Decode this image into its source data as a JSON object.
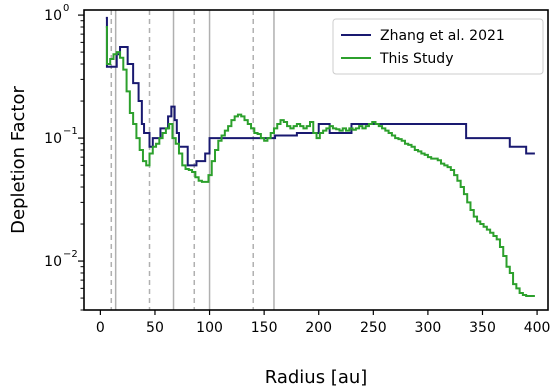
{
  "chart_data": {
    "type": "line",
    "xlabel": "Radius [au]",
    "ylabel": "Depletion Factor",
    "xlim": [
      -15,
      410
    ],
    "ylim": [
      0.004,
      1.1
    ],
    "y_scale": "log",
    "x_ticks": [
      0,
      50,
      100,
      150,
      200,
      250,
      300,
      350,
      400
    ],
    "x_tick_labels": [
      "0",
      "50",
      "100",
      "150",
      "200",
      "250",
      "300",
      "350",
      "400"
    ],
    "y_ticks": [
      0.01,
      0.1,
      1
    ],
    "y_tick_labels": [
      "10",
      "10",
      "10"
    ],
    "y_tick_exponents": [
      "−2",
      "−1",
      "0"
    ],
    "grid": false,
    "legend_position": "top-right",
    "reference_lines": [
      {
        "x": 10,
        "style": "dashed",
        "color": "#b0b0b0"
      },
      {
        "x": 14,
        "style": "solid",
        "color": "#b0b0b0"
      },
      {
        "x": 45,
        "style": "dashed",
        "color": "#b0b0b0"
      },
      {
        "x": 67,
        "style": "solid",
        "color": "#b0b0b0"
      },
      {
        "x": 86,
        "style": "dashed",
        "color": "#b0b0b0"
      },
      {
        "x": 100,
        "style": "solid",
        "color": "#b0b0b0"
      },
      {
        "x": 140,
        "style": "dashed",
        "color": "#b0b0b0"
      },
      {
        "x": 159,
        "style": "solid",
        "color": "#b0b0b0"
      }
    ],
    "series": [
      {
        "name": "Zhang et al. 2021",
        "color": "#191970",
        "step": "post",
        "x": [
          5,
          6,
          15,
          18,
          25,
          30,
          35,
          38,
          40,
          45,
          48,
          55,
          62,
          65,
          68,
          70,
          72,
          80,
          88,
          96,
          100,
          120,
          150,
          160,
          180,
          195,
          200,
          210,
          230,
          240,
          260,
          300,
          335,
          365,
          375,
          390,
          398
        ],
        "y": [
          0.95,
          0.38,
          0.48,
          0.55,
          0.4,
          0.28,
          0.2,
          0.13,
          0.11,
          0.085,
          0.1,
          0.12,
          0.15,
          0.18,
          0.14,
          0.11,
          0.085,
          0.06,
          0.065,
          0.075,
          0.1,
          0.1,
          0.1,
          0.105,
          0.11,
          0.11,
          0.13,
          0.11,
          0.13,
          0.13,
          0.13,
          0.13,
          0.1,
          0.1,
          0.085,
          0.075,
          0.075
        ]
      },
      {
        "name": "This Study",
        "color": "#2ca02c",
        "step": "post",
        "x": [
          5,
          6,
          9,
          12,
          15,
          18,
          21,
          24,
          27,
          30,
          33,
          36,
          39,
          42,
          45,
          48,
          51,
          54,
          57,
          60,
          63,
          66,
          69,
          72,
          75,
          78,
          81,
          84,
          87,
          90,
          93,
          96,
          99,
          102,
          105,
          108,
          111,
          114,
          117,
          120,
          123,
          126,
          129,
          132,
          135,
          138,
          141,
          144,
          147,
          150,
          153,
          156,
          159,
          162,
          165,
          168,
          171,
          174,
          177,
          180,
          183,
          186,
          189,
          192,
          195,
          198,
          201,
          204,
          207,
          210,
          213,
          216,
          219,
          222,
          225,
          228,
          231,
          234,
          237,
          240,
          243,
          246,
          249,
          252,
          255,
          258,
          261,
          264,
          267,
          270,
          273,
          276,
          279,
          282,
          285,
          288,
          291,
          294,
          297,
          300,
          303,
          306,
          309,
          312,
          315,
          318,
          321,
          324,
          327,
          330,
          333,
          336,
          339,
          342,
          345,
          348,
          351,
          354,
          357,
          360,
          363,
          366,
          369,
          372,
          375,
          378,
          381,
          384,
          387,
          390,
          393,
          396,
          398
        ],
        "y": [
          0.8,
          0.4,
          0.44,
          0.48,
          0.5,
          0.45,
          0.36,
          0.24,
          0.16,
          0.13,
          0.1,
          0.08,
          0.065,
          0.06,
          0.075,
          0.085,
          0.09,
          0.1,
          0.11,
          0.12,
          0.13,
          0.1,
          0.09,
          0.075,
          0.06,
          0.056,
          0.055,
          0.053,
          0.048,
          0.045,
          0.044,
          0.044,
          0.05,
          0.065,
          0.08,
          0.095,
          0.105,
          0.115,
          0.125,
          0.14,
          0.15,
          0.155,
          0.15,
          0.14,
          0.13,
          0.12,
          0.11,
          0.108,
          0.1,
          0.095,
          0.1,
          0.11,
          0.12,
          0.13,
          0.14,
          0.135,
          0.125,
          0.12,
          0.125,
          0.13,
          0.125,
          0.12,
          0.125,
          0.135,
          0.11,
          0.1,
          0.11,
          0.115,
          0.12,
          0.125,
          0.12,
          0.118,
          0.115,
          0.12,
          0.115,
          0.12,
          0.117,
          0.12,
          0.125,
          0.12,
          0.125,
          0.13,
          0.135,
          0.13,
          0.125,
          0.12,
          0.115,
          0.11,
          0.105,
          0.1,
          0.098,
          0.095,
          0.09,
          0.088,
          0.085,
          0.08,
          0.078,
          0.075,
          0.073,
          0.07,
          0.068,
          0.068,
          0.066,
          0.062,
          0.06,
          0.058,
          0.055,
          0.05,
          0.045,
          0.04,
          0.035,
          0.03,
          0.026,
          0.023,
          0.021,
          0.02,
          0.019,
          0.018,
          0.017,
          0.016,
          0.015,
          0.013,
          0.011,
          0.009,
          0.008,
          0.0065,
          0.006,
          0.0055,
          0.0053,
          0.0052,
          0.0052,
          0.0052,
          0.0052
        ]
      }
    ]
  }
}
